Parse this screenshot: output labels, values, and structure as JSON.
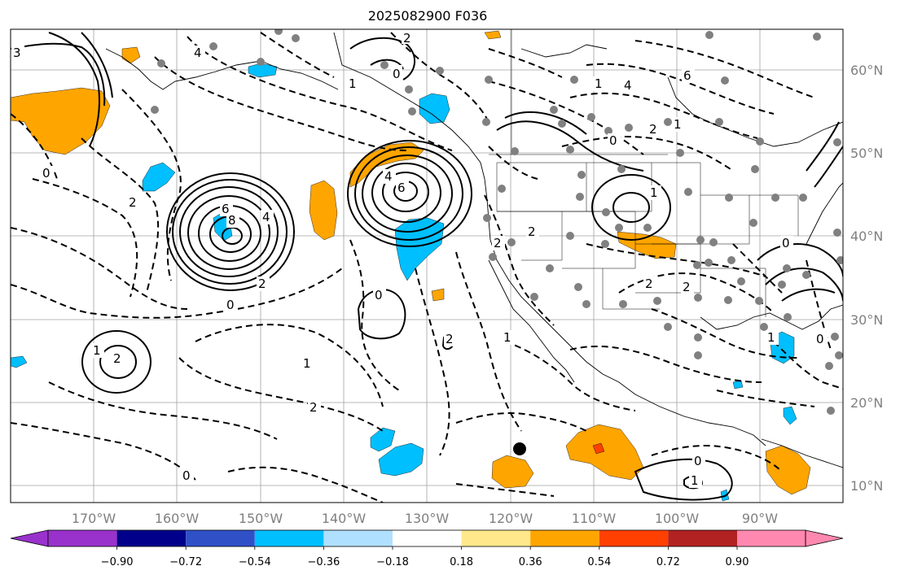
{
  "title": "2025082900 F036",
  "lon_labels": [
    "170°W",
    "160°W",
    "150°W",
    "140°W",
    "130°W",
    "120°W",
    "110°W",
    "100°W",
    "90°W"
  ],
  "lat_labels": [
    "60°N",
    "50°N",
    "40°N",
    "30°N",
    "20°N",
    "10°N"
  ],
  "colorbar": {
    "colors": [
      "#9932cc",
      "#00008b",
      "#3050c8",
      "#00bfff",
      "#b0e0ff",
      "#ffffff",
      "#ffe88c",
      "#ffa500",
      "#ff4000",
      "#b22222",
      "#ff88b0",
      "#ff88b0"
    ],
    "ticks": [
      "−0.90",
      "−0.72",
      "−0.54",
      "−0.36",
      "−0.18",
      "0.18",
      "0.36",
      "0.54",
      "0.72",
      "0.90"
    ]
  },
  "contour_labels": [
    "2",
    "0",
    "1",
    "4",
    "6",
    "8",
    "6",
    "4",
    "2",
    "0",
    "0",
    "1",
    "2",
    "2",
    "1",
    "0",
    "2",
    "0",
    "1",
    "2",
    "0",
    "1",
    "3",
    "4",
    "6",
    "4",
    "1",
    "1",
    "2",
    "0",
    "2",
    "2",
    "2",
    "1",
    "0",
    "2",
    "1",
    "0"
  ],
  "colors": {
    "orange": "#ffa500",
    "cyan": "#00bfff",
    "red": "#ff4000",
    "station": "#808080"
  }
}
